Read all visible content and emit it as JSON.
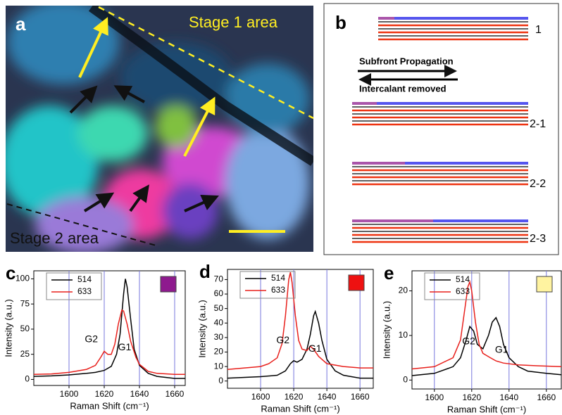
{
  "panel_a": {
    "label": "a",
    "stage1": "Stage 1 area",
    "stage2": "Stage 2 area"
  },
  "panel_b": {
    "label": "b",
    "step1": "1",
    "forward": "Subfront Propagation",
    "backward": "Intercalant removed",
    "steps": [
      "2-1",
      "2-2",
      "2-3"
    ]
  },
  "chart_data": [
    {
      "type": "line",
      "panel_label": "c",
      "xlabel": "Raman Shift (cm⁻¹)",
      "ylabel": "Intensity (a.u.)",
      "marker_color": "#8e1a8e",
      "annotations": [
        "G2",
        "G1"
      ],
      "xlim": [
        1580,
        1666
      ],
      "xticks": [
        1600,
        1620,
        1640,
        1660
      ],
      "ylim": [
        -6,
        108
      ],
      "yticks": [
        0,
        25,
        50,
        75,
        100
      ],
      "grid": true,
      "series": [
        {
          "name": "514",
          "color": "#000000",
          "x": [
            1580,
            1590,
            1600,
            1610,
            1615,
            1620,
            1624,
            1627,
            1629,
            1631,
            1632,
            1633,
            1635,
            1637,
            1640,
            1645,
            1650,
            1660,
            1666
          ],
          "values": [
            3,
            3.5,
            4.5,
            6,
            7,
            9,
            13,
            25,
            45,
            85,
            100,
            92,
            60,
            30,
            14,
            6,
            3,
            1,
            1
          ]
        },
        {
          "name": "633",
          "color": "#e8201c",
          "x": [
            1580,
            1590,
            1600,
            1610,
            1615,
            1618,
            1620,
            1622,
            1624,
            1626,
            1628,
            1630,
            1631,
            1633,
            1635,
            1638,
            1640,
            1645,
            1650,
            1660,
            1666
          ],
          "values": [
            5,
            5.5,
            7,
            10,
            14,
            22,
            28,
            25,
            25,
            35,
            55,
            69,
            68,
            55,
            38,
            22,
            15,
            8,
            6,
            5,
            5
          ]
        }
      ]
    },
    {
      "type": "line",
      "panel_label": "d",
      "xlabel": "Raman Shift (cm⁻¹)",
      "ylabel": "Intensity (a.u.)",
      "marker_color": "#ee1111",
      "annotations": [
        "G2",
        "G1"
      ],
      "xlim": [
        1580,
        1668
      ],
      "xticks": [
        1600,
        1620,
        1640,
        1660
      ],
      "ylim": [
        -5,
        77
      ],
      "yticks": [
        0,
        10,
        20,
        30,
        40,
        50,
        60,
        70
      ],
      "grid": true,
      "series": [
        {
          "name": "514",
          "color": "#000000",
          "x": [
            1580,
            1600,
            1610,
            1615,
            1618,
            1620,
            1622,
            1625,
            1628,
            1630,
            1632,
            1633,
            1635,
            1637,
            1640,
            1645,
            1650,
            1660,
            1668
          ],
          "values": [
            2,
            3,
            4,
            7,
            12,
            14,
            13,
            15,
            22,
            32,
            45,
            48,
            40,
            28,
            15,
            7,
            4,
            2,
            2
          ]
        },
        {
          "name": "633",
          "color": "#e8201c",
          "x": [
            1580,
            1600,
            1605,
            1610,
            1613,
            1615,
            1617,
            1618,
            1619,
            1621,
            1623,
            1625,
            1628,
            1630,
            1632,
            1635,
            1640,
            1650,
            1660,
            1668
          ],
          "values": [
            8,
            10,
            12,
            16,
            26,
            45,
            70,
            75,
            68,
            45,
            28,
            22,
            21,
            24,
            22,
            17,
            12,
            10,
            9,
            9
          ]
        }
      ]
    },
    {
      "type": "line",
      "panel_label": "e",
      "xlabel": "Raman Shift (cm⁻¹)",
      "ylabel": "Intensity (a.u.)",
      "marker_color": "#fff3a0",
      "annotations": [
        "G2",
        "G1"
      ],
      "xlim": [
        1588,
        1668
      ],
      "xticks": [
        1600,
        1620,
        1640,
        1660
      ],
      "ylim": [
        -2,
        24.5
      ],
      "yticks": [
        0,
        10,
        20
      ],
      "grid": true,
      "series": [
        {
          "name": "514",
          "color": "#000000",
          "x": [
            1588,
            1600,
            1610,
            1614,
            1617,
            1619,
            1621,
            1623,
            1626,
            1629,
            1631,
            1633,
            1635,
            1637,
            1640,
            1645,
            1650,
            1660,
            1668
          ],
          "values": [
            1,
            1.5,
            3,
            5,
            9,
            12,
            11,
            8,
            7,
            10,
            13,
            14,
            12,
            8,
            5,
            3,
            2,
            1.5,
            1.2
          ]
        },
        {
          "name": "633",
          "color": "#e8201c",
          "x": [
            1588,
            1600,
            1610,
            1614,
            1616,
            1618,
            1619,
            1620,
            1622,
            1624,
            1626,
            1628,
            1630,
            1633,
            1637,
            1645,
            1655,
            1668
          ],
          "values": [
            2.5,
            3,
            5,
            9,
            15,
            21,
            22,
            20,
            13,
            8,
            6,
            5.5,
            5,
            4.3,
            3.8,
            3.4,
            3.2,
            3
          ]
        }
      ]
    }
  ]
}
